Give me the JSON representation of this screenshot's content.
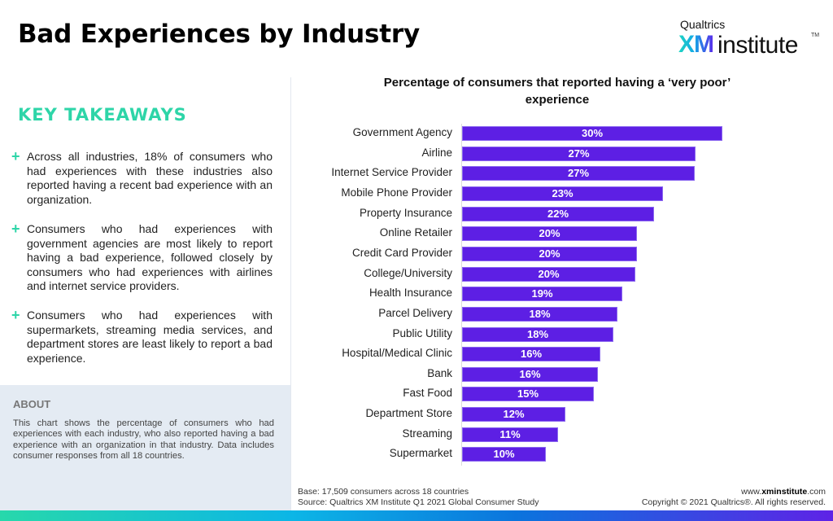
{
  "header": {
    "title": "Bad Experiences by Industry",
    "logo": {
      "small": "Qualtrics",
      "xm": "XM",
      "institute": "institute",
      "tm": "TM"
    }
  },
  "key_takeaways": {
    "title": "KEY TAKEAWAYS",
    "bullet_icon": "plus-icon",
    "items": [
      "Across all industries, 18% of consumers who had experiences with these industries also reported having a recent bad experience with an organization.",
      "Consumers who had experiences with government agencies are most likely to report having a bad experience, followed closely by consumers who had experiences with airlines and internet service providers.",
      "Consumers who had experiences with supermarkets, streaming media services, and department stores are least likely to report a bad experience."
    ]
  },
  "about": {
    "title": "ABOUT",
    "text": "This chart shows the percentage of consumers who had experiences with each industry, who also reported having a bad experience with an organization in that industry. Data includes consumer responses from all 18 countries."
  },
  "footer": {
    "base": "Base: 17,509 consumers across 18 countries",
    "source": "Source: Qualtrics XM Institute Q1 2021 Global Consumer Study",
    "site_prefix": "www.",
    "site_bold": "xminstitute",
    "site_suffix": ".com",
    "copyright": "Copyright © 2021 Qualtrics®. All rights reserved."
  },
  "colors": {
    "bar": "#5d1fe4",
    "accent": "#2ed5a8",
    "about_bg": "#e4ebf3"
  },
  "chart_data": {
    "type": "bar",
    "orientation": "horizontal",
    "title": "Percentage of consumers that reported having a ‘very poor’ experience",
    "xlabel": "",
    "ylabel": "",
    "xlim": [
      0,
      30
    ],
    "grid": false,
    "legend": "none",
    "categories": [
      "Government Agency",
      "Airline",
      "Internet Service Provider",
      "Mobile Phone Provider",
      "Property Insurance",
      "Online Retailer",
      "Credit Card Provider",
      "College/University",
      "Health Insurance",
      "Parcel Delivery",
      "Public Utility",
      "Hospital/Medical Clinic",
      "Bank",
      "Fast Food",
      "Department Store",
      "Streaming",
      "Supermarket"
    ],
    "values": [
      30,
      27,
      27,
      23,
      22,
      20,
      20,
      20,
      19,
      18,
      18,
      16,
      16,
      15,
      12,
      11,
      10
    ],
    "plot_values": [
      30,
      26.9,
      26.8,
      23.2,
      22.1,
      20.2,
      20.2,
      20.0,
      18.5,
      17.9,
      17.4,
      15.9,
      15.7,
      15.2,
      11.9,
      11.1,
      9.7
    ],
    "data_labels": [
      "30%",
      "27%",
      "27%",
      "23%",
      "22%",
      "20%",
      "20%",
      "20%",
      "19%",
      "18%",
      "18%",
      "16%",
      "16%",
      "15%",
      "12%",
      "11%",
      "10%"
    ]
  }
}
